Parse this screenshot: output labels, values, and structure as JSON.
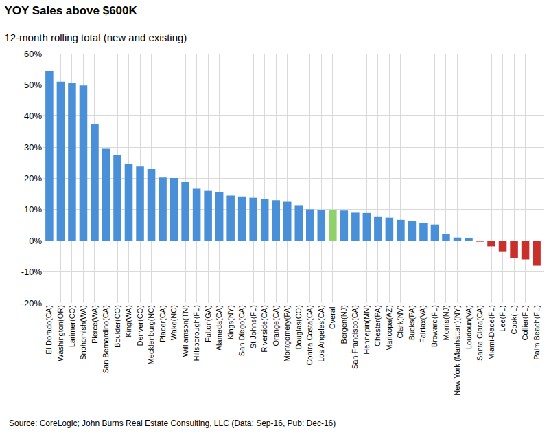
{
  "chart_data": {
    "type": "bar",
    "title": "YOY Sales above $600K",
    "subtitle": "12-month rolling total (new and existing)",
    "source": "Source: CoreLogic; John Burns Real Estate Consulting, LLC (Data: Sep-16, Pub: Dec-16)",
    "categories": [
      "El Dorado(CA)",
      "Washington(OR)",
      "Larimer(CO)",
      "Snohomish(WA)",
      "Pierce(WA)",
      "San Bernardino(CA)",
      "Boulder(CO)",
      "King(WA)",
      "Denver(CO)",
      "Mecklenburg(NC)",
      "Placer(CA)",
      "Wake(NC)",
      "Williamson(TN)",
      "Hillsborough(FL)",
      "Fulton(GA)",
      "Alameda(CA)",
      "Kings(NY)",
      "San Diego(CA)",
      "St Johns(FL)",
      "Riverside(CA)",
      "Orange(CA)",
      "Montgomery(PA)",
      "Douglas(CO)",
      "Contra Costa(CA)",
      "Los Angeles(CA)",
      "Overall",
      "Bergen(NJ)",
      "San Francisco(CA)",
      "Hennepin(MN)",
      "Chester(PA)",
      "Maricopa(AZ)",
      "Clark(NV)",
      "Bucks(PA)",
      "Fairfax(VA)",
      "Broward(FL)",
      "Morris(NJ)",
      "New York (Manhattan)(NY)",
      "Loudoun(VA)",
      "Santa Clara(CA)",
      "Miami-Dade(FL)",
      "Lee(FL)",
      "Cook(IL)",
      "Collier(FL)",
      "Palm Beach(FL)"
    ],
    "values": [
      54.5,
      51,
      50.5,
      49.8,
      37.5,
      29.5,
      27.5,
      24.5,
      23.8,
      23,
      20.3,
      20.1,
      18.8,
      16.7,
      16,
      15.5,
      14.5,
      14.2,
      13.8,
      13.3,
      13,
      12.5,
      11.2,
      10.1,
      9.8,
      9.8,
      9.7,
      9,
      8.9,
      7.6,
      7.4,
      6.7,
      6.4,
      5.6,
      5.2,
      2.1,
      1,
      0.8,
      -0.3,
      -1.8,
      -3.4,
      -5.5,
      -6,
      -8
    ],
    "colors": [
      "#4a90d9",
      "#4a90d9",
      "#4a90d9",
      "#4a90d9",
      "#4a90d9",
      "#4a90d9",
      "#4a90d9",
      "#4a90d9",
      "#4a90d9",
      "#4a90d9",
      "#4a90d9",
      "#4a90d9",
      "#4a90d9",
      "#4a90d9",
      "#4a90d9",
      "#4a90d9",
      "#4a90d9",
      "#4a90d9",
      "#4a90d9",
      "#4a90d9",
      "#4a90d9",
      "#4a90d9",
      "#4a90d9",
      "#4a90d9",
      "#4a90d9",
      "#8fd16a",
      "#4a90d9",
      "#4a90d9",
      "#4a90d9",
      "#4a90d9",
      "#4a90d9",
      "#4a90d9",
      "#4a90d9",
      "#4a90d9",
      "#4a90d9",
      "#4a90d9",
      "#4a90d9",
      "#4a90d9",
      "#c9302c",
      "#c9302c",
      "#c9302c",
      "#c9302c",
      "#c9302c",
      "#c9302c"
    ],
    "ylim": [
      -20,
      60
    ],
    "yticks": [
      {
        "value": -20,
        "label": "-20%"
      },
      {
        "value": -10,
        "label": "-10%"
      },
      {
        "value": 0,
        "label": "0%"
      },
      {
        "value": 10,
        "label": "10%"
      },
      {
        "value": 20,
        "label": "20%"
      },
      {
        "value": 30,
        "label": "30%"
      },
      {
        "value": 40,
        "label": "40%"
      },
      {
        "value": 50,
        "label": "50%"
      },
      {
        "value": 60,
        "label": "60%"
      }
    ],
    "grid": true
  }
}
